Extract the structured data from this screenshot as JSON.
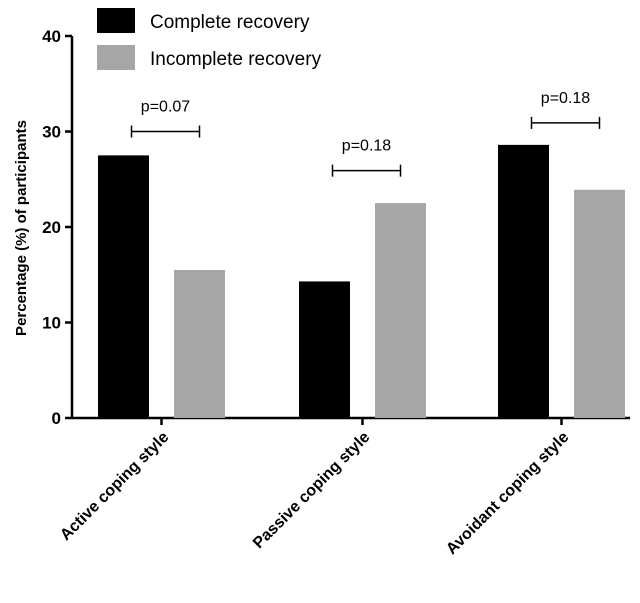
{
  "chart_data": {
    "type": "bar",
    "categories": [
      "Active coping style",
      "Passive coping style",
      "Avoidant coping style"
    ],
    "series": [
      {
        "name": "Complete recovery",
        "color": "#000000",
        "values": [
          27.5,
          14.3,
          28.6
        ]
      },
      {
        "name": "Incomplete recovery",
        "color": "#a6a6a6",
        "values": [
          15.5,
          22.5,
          23.9
        ]
      }
    ],
    "ylabel": "Percentage (%) of participants",
    "xlabel": "",
    "ylim": [
      0,
      40
    ],
    "yticks": [
      0,
      10,
      20,
      30,
      40
    ],
    "grid": false,
    "legend_position": "top-left",
    "annotations": [
      {
        "category_index": 0,
        "label": "p=0.07",
        "level": 30
      },
      {
        "category_index": 1,
        "label": "p=0.18",
        "level": 25.9
      },
      {
        "category_index": 2,
        "label": "p=0.18",
        "level": 30.9
      }
    ]
  }
}
